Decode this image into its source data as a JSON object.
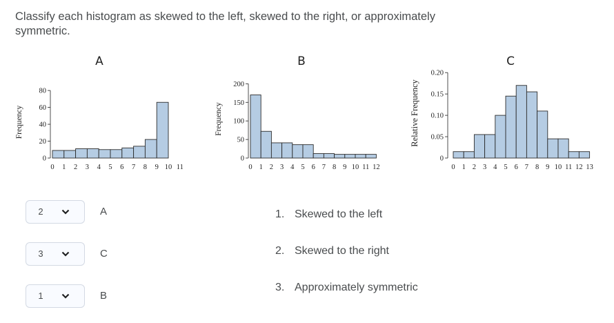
{
  "question": "Classify each histogram as skewed to the left, skewed to the right, or approximately symmetric.",
  "chart_data": [
    {
      "type": "bar",
      "title": "A",
      "ylabel": "Frequency",
      "categories": [
        "0",
        "1",
        "2",
        "3",
        "4",
        "5",
        "6",
        "7",
        "8",
        "9",
        "10",
        "11"
      ],
      "bar_values": [
        9,
        9,
        11,
        11,
        10,
        10,
        12,
        14,
        22,
        66
      ],
      "bin_edges": [
        0,
        1,
        2,
        3,
        4,
        5,
        6,
        7,
        8,
        9,
        10
      ],
      "ylim": [
        0,
        85
      ],
      "yticks": [
        "0",
        "20",
        "40",
        "60",
        "80"
      ],
      "ytick_values": [
        0,
        20,
        40,
        60,
        80
      ]
    },
    {
      "type": "bar",
      "title": "B",
      "ylabel": "Frequency",
      "categories": [
        "0",
        "1",
        "2",
        "3",
        "4",
        "5",
        "6",
        "7",
        "8",
        "9",
        "10",
        "11",
        "12"
      ],
      "bar_values": [
        170,
        72,
        41,
        41,
        36,
        36,
        12,
        12,
        10,
        10,
        10,
        10
      ],
      "bin_edges": [
        0,
        1,
        2,
        3,
        4,
        5,
        6,
        7,
        8,
        9,
        10,
        11,
        12
      ],
      "ylim": [
        0,
        210
      ],
      "yticks": [
        "0",
        "50",
        "100",
        "150",
        "200"
      ],
      "ytick_values": [
        0,
        50,
        100,
        150,
        200
      ]
    },
    {
      "type": "bar",
      "title": "C",
      "ylabel": "Relative Frequency",
      "categories": [
        "0",
        "1",
        "2",
        "3",
        "4",
        "5",
        "6",
        "7",
        "8",
        "9",
        "10",
        "11",
        "12",
        "13"
      ],
      "bar_values": [
        0.015,
        0.015,
        0.055,
        0.055,
        0.1,
        0.145,
        0.17,
        0.155,
        0.11,
        0.045,
        0.045,
        0.015,
        0.015
      ],
      "bin_edges": [
        0,
        1,
        2,
        3,
        4,
        5,
        6,
        7,
        8,
        9,
        10,
        11,
        12,
        13
      ],
      "ylim": [
        0,
        0.21
      ],
      "yticks": [
        "0",
        "0.05",
        "0.10",
        "0.15",
        "0.20"
      ],
      "ytick_values": [
        0,
        0.05,
        0.1,
        0.15,
        0.2
      ]
    }
  ],
  "rows": [
    {
      "value": "2",
      "label": "A"
    },
    {
      "value": "3",
      "label": "C"
    },
    {
      "value": "1",
      "label": "B"
    }
  ],
  "answers": [
    {
      "num": "1.",
      "text": "Skewed to the left"
    },
    {
      "num": "2.",
      "text": "Skewed to the right"
    },
    {
      "num": "3.",
      "text": "Approximately symmetric"
    }
  ],
  "icons": {
    "dropdown": "chevron-down-icon"
  }
}
